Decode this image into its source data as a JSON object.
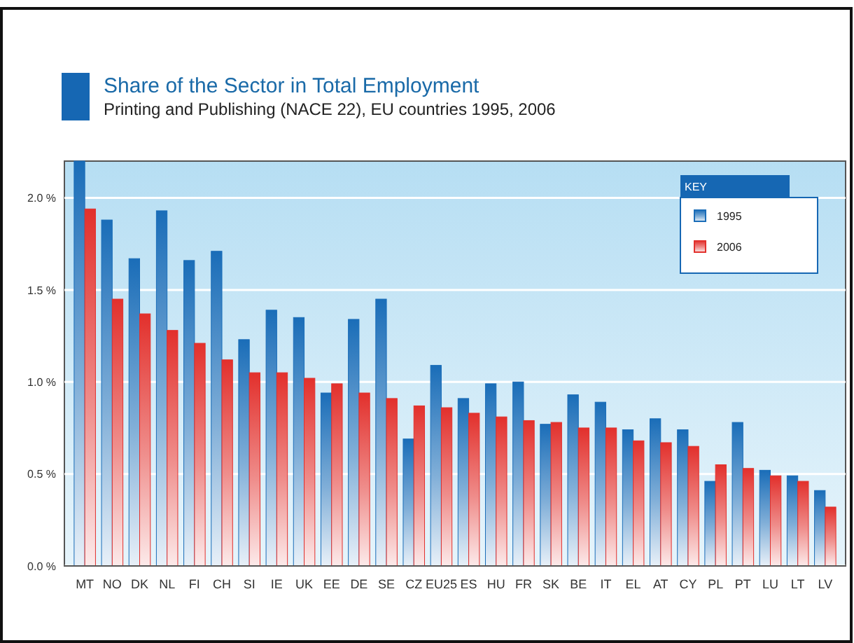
{
  "chart_data": {
    "type": "bar",
    "title": "Share of the Sector in Total Employment",
    "subtitle": "Printing and Publishing (NACE 22), EU countries 1995, 2006",
    "categories": [
      "MT",
      "NO",
      "DK",
      "NL",
      "FI",
      "CH",
      "SI",
      "IE",
      "UK",
      "EE",
      "DE",
      "SE",
      "CZ",
      "EU25",
      "ES",
      "HU",
      "FR",
      "SK",
      "BE",
      "IT",
      "EL",
      "AT",
      "CY",
      "PL",
      "PT",
      "LU",
      "LT",
      "LV"
    ],
    "series": [
      {
        "name": "1995",
        "color": "#1a6db8",
        "values": [
          2.2,
          1.88,
          1.67,
          1.93,
          1.66,
          1.71,
          1.23,
          1.39,
          1.35,
          0.94,
          1.34,
          1.45,
          0.69,
          1.09,
          0.91,
          0.99,
          1.0,
          0.77,
          0.93,
          0.89,
          0.74,
          0.8,
          0.74,
          0.46,
          0.78,
          0.52,
          0.49,
          0.41
        ]
      },
      {
        "name": "2006",
        "color": "#e2302c",
        "values": [
          1.94,
          1.45,
          1.37,
          1.28,
          1.21,
          1.12,
          1.05,
          1.05,
          1.02,
          0.99,
          0.94,
          0.91,
          0.87,
          0.86,
          0.83,
          0.81,
          0.79,
          0.78,
          0.75,
          0.75,
          0.68,
          0.67,
          0.65,
          0.55,
          0.53,
          0.49,
          0.46,
          0.32
        ]
      }
    ],
    "ylim": [
      0,
      2.2
    ],
    "yticks": [
      {
        "value": 0,
        "label": "0.0 %"
      },
      {
        "value": 0.5,
        "label": "0.5 %"
      },
      {
        "value": 1,
        "label": "1.0 %"
      },
      {
        "value": 1.5,
        "label": "1.5 %"
      },
      {
        "value": 2,
        "label": "2.0 %"
      }
    ],
    "grid": "y",
    "legend": "top right",
    "legend_title": "KEY"
  }
}
